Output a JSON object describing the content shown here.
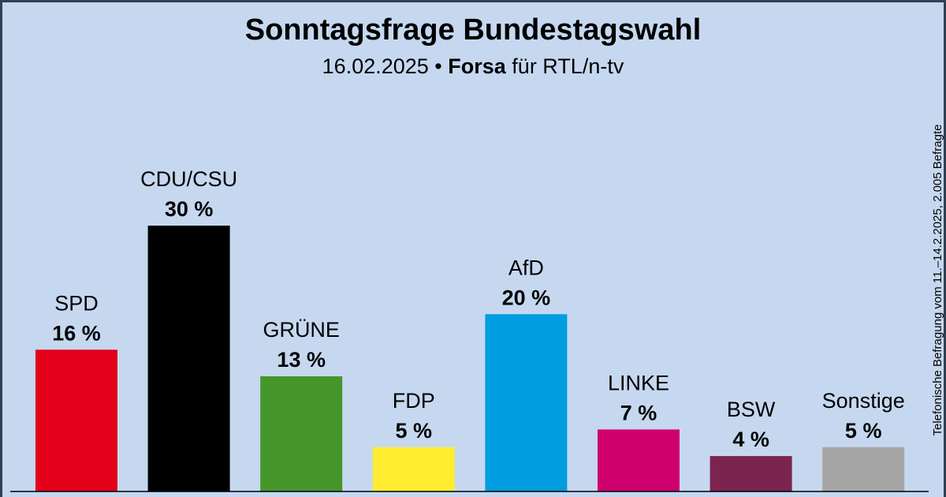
{
  "header": {
    "title": "Sonntagsfrage Bundestagswahl",
    "subtitle_date": "16.02.2025",
    "subtitle_separator": " • ",
    "subtitle_institute": "Forsa",
    "subtitle_client": " für RTL/n-tv"
  },
  "side_note": "Telefonische Befragung vom 11.–14.2.2025, 2.005 Befragte",
  "chart_data": {
    "type": "bar",
    "title": "Sonntagsfrage Bundestagswahl",
    "subtitle": "16.02.2025 • Forsa für RTL/n-tv",
    "categories": [
      "SPD",
      "CDU/CSU",
      "GRÜNE",
      "FDP",
      "AfD",
      "LINKE",
      "BSW",
      "Sonstige"
    ],
    "values": [
      16,
      30,
      13,
      5,
      20,
      7,
      4,
      5
    ],
    "value_labels": [
      "16 %",
      "30 %",
      "13 %",
      "5 %",
      "20 %",
      "7 %",
      "4 %",
      "5 %"
    ],
    "colors": [
      "#e3001b",
      "#000000",
      "#46962b",
      "#ffed32",
      "#009ee0",
      "#d0006f",
      "#7b2450",
      "#a6a6a6"
    ],
    "unit": "%",
    "ylim": [
      0,
      30
    ],
    "grid": false,
    "legend": "none"
  }
}
